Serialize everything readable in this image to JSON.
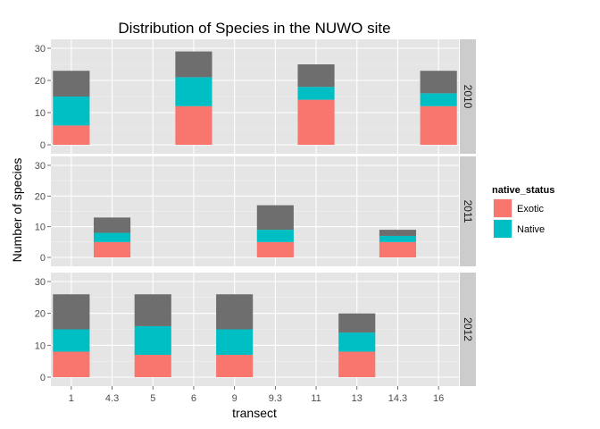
{
  "chart_data": {
    "type": "bar",
    "stacked": true,
    "title": "Distribution of Species in the NUWO site",
    "xlabel": "transect",
    "ylabel": "Number of species",
    "categories": [
      "1",
      "4.3",
      "5",
      "6",
      "9",
      "9.3",
      "11",
      "13",
      "14.3",
      "16"
    ],
    "ylim": [
      0,
      30
    ],
    "yticks": [
      0,
      10,
      20,
      30
    ],
    "legend": {
      "title": "native_status",
      "position": "right",
      "entries": [
        {
          "label": "Exotic",
          "color": "#f8766d"
        },
        {
          "label": "Native",
          "color": "#00bfc4"
        }
      ]
    },
    "other_color": "#6e6e6e",
    "panels": [
      {
        "label": "2010",
        "bars": [
          {
            "x": "1",
            "exotic": 6,
            "native": 9,
            "other": 8
          },
          {
            "x": "6",
            "exotic": 12,
            "native": 9,
            "other": 8
          },
          {
            "x": "11",
            "exotic": 14,
            "native": 4,
            "other": 7
          },
          {
            "x": "16",
            "exotic": 12,
            "native": 4,
            "other": 7
          }
        ]
      },
      {
        "label": "2011",
        "bars": [
          {
            "x": "4.3",
            "exotic": 5,
            "native": 3,
            "other": 5
          },
          {
            "x": "9.3",
            "exotic": 5,
            "native": 4,
            "other": 8
          },
          {
            "x": "14.3",
            "exotic": 5,
            "native": 2,
            "other": 2
          }
        ]
      },
      {
        "label": "2012",
        "bars": [
          {
            "x": "1",
            "exotic": 8,
            "native": 7,
            "other": 11
          },
          {
            "x": "5",
            "exotic": 7,
            "native": 9,
            "other": 10
          },
          {
            "x": "9",
            "exotic": 7,
            "native": 8,
            "other": 11
          },
          {
            "x": "13",
            "exotic": 8,
            "native": 6,
            "other": 6
          }
        ]
      }
    ],
    "grid": true
  }
}
